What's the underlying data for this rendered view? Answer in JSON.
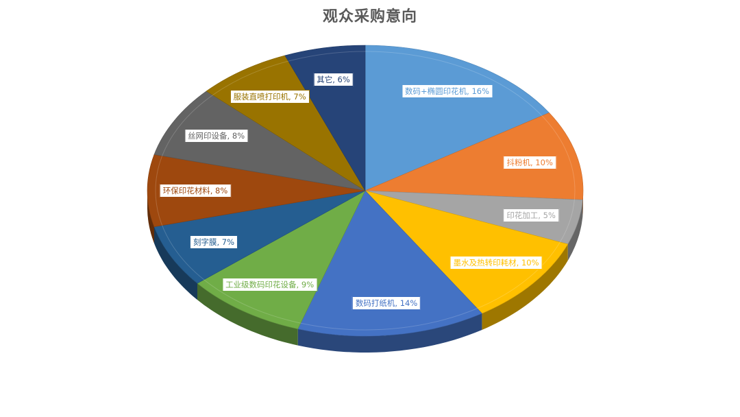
{
  "chart_data": {
    "type": "pie",
    "title": "观众采购意向",
    "data_labels": [
      "数码+椭圆印花机, 16%",
      "抖粉机, 10%",
      "印花加工, 5%",
      "墨水及热转印耗材, 10%",
      "数码打纸机, 14%",
      "工业级数码印花设备, 9%",
      "刻字膜, 7%",
      "环保印花材料, 8%",
      "丝网印设备, 8%",
      "服装直喷打印机, 7%",
      "其它, 6%"
    ],
    "slices": [
      {
        "label": "数码+椭圆印花机",
        "value": 16,
        "color": "#5b9bd5"
      },
      {
        "label": "抖粉机",
        "value": 10,
        "color": "#ed7d31"
      },
      {
        "label": "印花加工",
        "value": 5,
        "color": "#a5a5a5"
      },
      {
        "label": "墨水及热转印耗材",
        "value": 10,
        "color": "#ffc000"
      },
      {
        "label": "数码打纸机",
        "value": 14,
        "color": "#4472c4"
      },
      {
        "label": "工业级数码印花设备",
        "value": 9,
        "color": "#70ad47"
      },
      {
        "label": "刻字膜",
        "value": 7,
        "color": "#255e91"
      },
      {
        "label": "环保印花材料",
        "value": 8,
        "color": "#9e480e"
      },
      {
        "label": "丝网印设备",
        "value": 8,
        "color": "#636363"
      },
      {
        "label": "服装直喷打印机",
        "value": 7,
        "color": "#997300"
      },
      {
        "label": "其它",
        "value": 6,
        "color": "#264478"
      }
    ]
  }
}
